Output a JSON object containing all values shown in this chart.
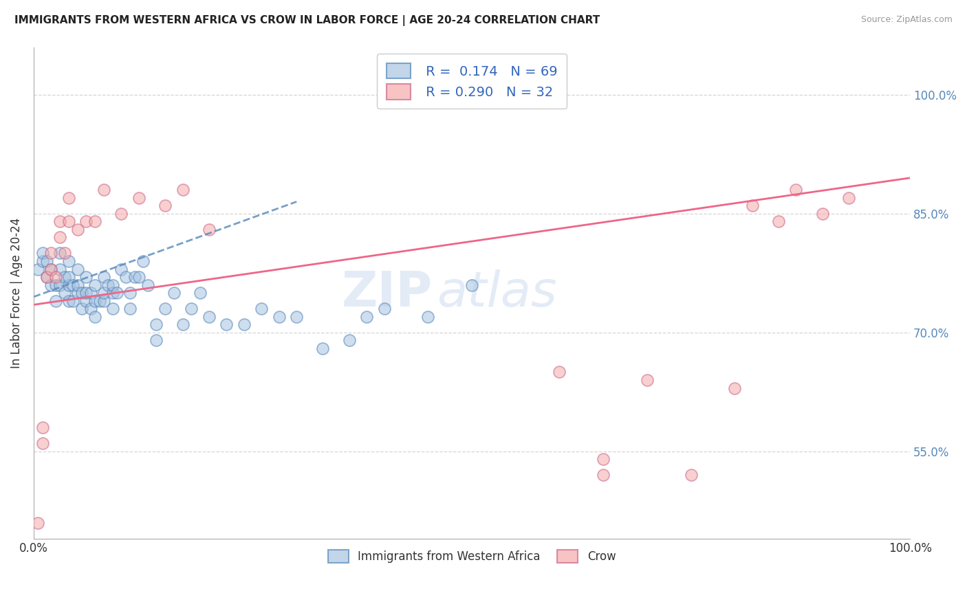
{
  "title": "IMMIGRANTS FROM WESTERN AFRICA VS CROW IN LABOR FORCE | AGE 20-24 CORRELATION CHART",
  "source": "Source: ZipAtlas.com",
  "ylabel": "In Labor Force | Age 20-24",
  "legend_label1": "Immigrants from Western Africa",
  "legend_label2": "Crow",
  "R1": 0.174,
  "N1": 69,
  "R2": 0.29,
  "N2": 32,
  "color_blue": "#A8C4E0",
  "color_blue_edge": "#5588BB",
  "color_pink": "#F4AAAA",
  "color_pink_edge": "#CC6688",
  "color_blue_trend": "#5588BB",
  "color_pink_trend": "#EE6688",
  "xlim": [
    0.0,
    1.0
  ],
  "ylim": [
    0.44,
    1.06
  ],
  "ytick_positions": [
    0.55,
    0.7,
    0.85,
    1.0
  ],
  "ytick_labels": [
    "55.0%",
    "70.0%",
    "85.0%",
    "100.0%"
  ],
  "blue_trend_x": [
    0.0,
    0.3
  ],
  "blue_trend_y": [
    0.745,
    0.865
  ],
  "pink_trend_x": [
    0.0,
    1.0
  ],
  "pink_trend_y": [
    0.735,
    0.895
  ],
  "blue_x": [
    0.005,
    0.01,
    0.01,
    0.015,
    0.015,
    0.02,
    0.02,
    0.025,
    0.025,
    0.03,
    0.03,
    0.03,
    0.035,
    0.035,
    0.04,
    0.04,
    0.04,
    0.04,
    0.045,
    0.045,
    0.05,
    0.05,
    0.05,
    0.055,
    0.055,
    0.06,
    0.06,
    0.06,
    0.065,
    0.065,
    0.07,
    0.07,
    0.07,
    0.075,
    0.08,
    0.08,
    0.08,
    0.085,
    0.09,
    0.09,
    0.09,
    0.095,
    0.1,
    0.105,
    0.11,
    0.11,
    0.115,
    0.12,
    0.125,
    0.13,
    0.14,
    0.14,
    0.15,
    0.16,
    0.17,
    0.18,
    0.19,
    0.2,
    0.22,
    0.24,
    0.26,
    0.28,
    0.3,
    0.33,
    0.36,
    0.38,
    0.4,
    0.45,
    0.5
  ],
  "blue_y": [
    0.78,
    0.79,
    0.8,
    0.77,
    0.79,
    0.76,
    0.78,
    0.74,
    0.76,
    0.76,
    0.78,
    0.8,
    0.75,
    0.77,
    0.74,
    0.76,
    0.77,
    0.79,
    0.74,
    0.76,
    0.75,
    0.76,
    0.78,
    0.73,
    0.75,
    0.74,
    0.75,
    0.77,
    0.73,
    0.75,
    0.72,
    0.74,
    0.76,
    0.74,
    0.74,
    0.75,
    0.77,
    0.76,
    0.73,
    0.75,
    0.76,
    0.75,
    0.78,
    0.77,
    0.73,
    0.75,
    0.77,
    0.77,
    0.79,
    0.76,
    0.69,
    0.71,
    0.73,
    0.75,
    0.71,
    0.73,
    0.75,
    0.72,
    0.71,
    0.71,
    0.73,
    0.72,
    0.72,
    0.68,
    0.69,
    0.72,
    0.73,
    0.72,
    0.76
  ],
  "pink_x": [
    0.005,
    0.01,
    0.01,
    0.015,
    0.02,
    0.02,
    0.025,
    0.03,
    0.03,
    0.035,
    0.04,
    0.04,
    0.05,
    0.06,
    0.07,
    0.08,
    0.1,
    0.12,
    0.15,
    0.17,
    0.2,
    0.6,
    0.65,
    0.65,
    0.7,
    0.75,
    0.8,
    0.82,
    0.85,
    0.87,
    0.9,
    0.93
  ],
  "pink_y": [
    0.46,
    0.56,
    0.58,
    0.77,
    0.78,
    0.8,
    0.77,
    0.82,
    0.84,
    0.8,
    0.84,
    0.87,
    0.83,
    0.84,
    0.84,
    0.88,
    0.85,
    0.87,
    0.86,
    0.88,
    0.83,
    0.65,
    0.52,
    0.54,
    0.64,
    0.52,
    0.63,
    0.86,
    0.84,
    0.88,
    0.85,
    0.87
  ],
  "watermark_zip": "ZIP",
  "watermark_atlas": "atlas",
  "figsize": [
    14.06,
    8.92
  ],
  "dpi": 100
}
